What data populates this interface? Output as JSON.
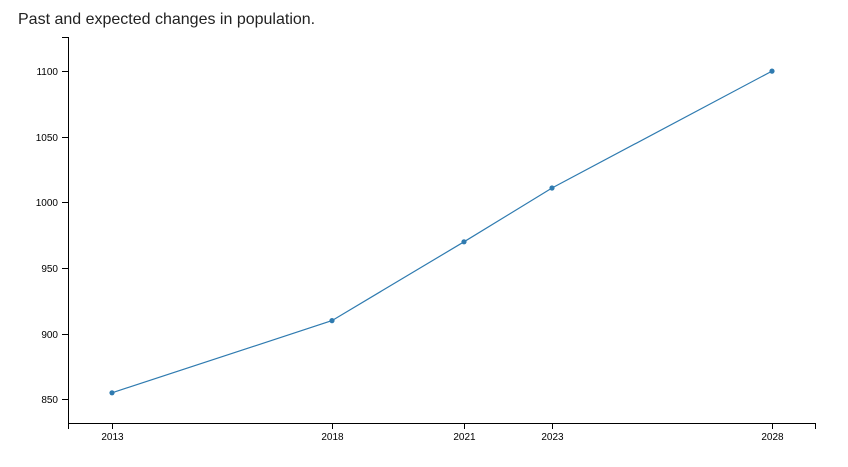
{
  "chart_data": {
    "type": "line",
    "title": "Past and expected changes in population.",
    "xlabel": "",
    "ylabel": "",
    "x": [
      2013,
      2018,
      2021,
      2023,
      2028
    ],
    "series": [
      {
        "values": [
          855,
          910,
          970,
          1011,
          1100
        ]
      }
    ],
    "xlim": [
      2012,
      2029
    ],
    "ylim": [
      832,
      1126
    ],
    "xticks": [
      2013,
      2018,
      2021,
      2023,
      2028
    ],
    "yticks": [
      850,
      900,
      950,
      1000,
      1050,
      1100
    ],
    "grid": false,
    "legend": "none",
    "color": "#2f7bb0"
  }
}
